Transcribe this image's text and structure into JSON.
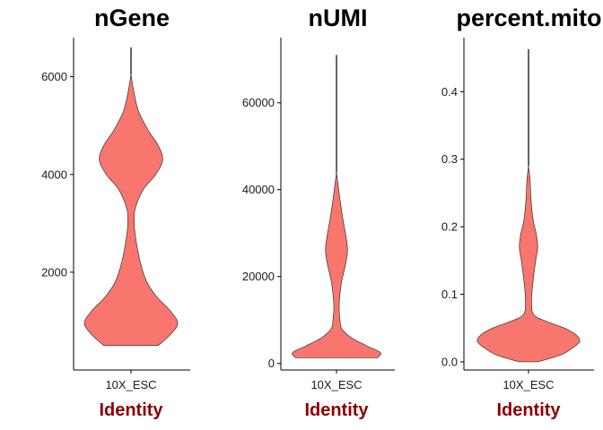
{
  "chart_data": [
    {
      "type": "violin",
      "title": "nGene",
      "xlabel": "Identity",
      "categories": [
        "10X_ESC"
      ],
      "ylim": [
        0,
        6800
      ],
      "yticks": [
        2000,
        4000,
        6000
      ],
      "y_tick_labels": [
        "2000",
        "4000",
        "6000"
      ],
      "range": [
        500,
        6600
      ],
      "spike_from": 6050,
      "density_profile": [
        {
          "y": 500,
          "w": 0.58
        },
        {
          "y": 700,
          "w": 0.82
        },
        {
          "y": 950,
          "w": 1.0
        },
        {
          "y": 1200,
          "w": 0.85
        },
        {
          "y": 1500,
          "w": 0.55
        },
        {
          "y": 1800,
          "w": 0.34
        },
        {
          "y": 2200,
          "w": 0.2
        },
        {
          "y": 2700,
          "w": 0.1
        },
        {
          "y": 3000,
          "w": 0.07
        },
        {
          "y": 3300,
          "w": 0.09
        },
        {
          "y": 3700,
          "w": 0.27
        },
        {
          "y": 4000,
          "w": 0.53
        },
        {
          "y": 4300,
          "w": 0.68
        },
        {
          "y": 4600,
          "w": 0.58
        },
        {
          "y": 4900,
          "w": 0.37
        },
        {
          "y": 5300,
          "w": 0.16
        },
        {
          "y": 5700,
          "w": 0.06
        },
        {
          "y": 6050,
          "w": 0.0
        }
      ]
    },
    {
      "type": "violin",
      "title": "nUMI",
      "xlabel": "Identity",
      "categories": [
        "10X_ESC"
      ],
      "ylim": [
        -1500,
        75000
      ],
      "yticks": [
        0,
        20000,
        40000,
        60000
      ],
      "y_tick_labels": [
        "0",
        "20000",
        "40000",
        "60000"
      ],
      "range": [
        1300,
        71000
      ],
      "spike_from": 44000,
      "density_profile": [
        {
          "y": 1300,
          "w": 0.93
        },
        {
          "y": 2500,
          "w": 1.0
        },
        {
          "y": 4000,
          "w": 0.7
        },
        {
          "y": 6000,
          "w": 0.33
        },
        {
          "y": 8000,
          "w": 0.12
        },
        {
          "y": 10000,
          "w": 0.08
        },
        {
          "y": 13000,
          "w": 0.06
        },
        {
          "y": 16000,
          "w": 0.08
        },
        {
          "y": 19000,
          "w": 0.12
        },
        {
          "y": 23000,
          "w": 0.21
        },
        {
          "y": 26000,
          "w": 0.25
        },
        {
          "y": 29000,
          "w": 0.22
        },
        {
          "y": 33000,
          "w": 0.15
        },
        {
          "y": 37000,
          "w": 0.09
        },
        {
          "y": 40000,
          "w": 0.05
        },
        {
          "y": 44000,
          "w": 0.0
        }
      ]
    },
    {
      "type": "violin",
      "title": "percent.mito",
      "xlabel": "Identity",
      "categories": [
        "10X_ESC"
      ],
      "ylim": [
        -0.012,
        0.48
      ],
      "yticks": [
        0.0,
        0.1,
        0.2,
        0.3,
        0.4
      ],
      "y_tick_labels": [
        "0.0",
        "0.1",
        "0.2",
        "0.3",
        "0.4"
      ],
      "range": [
        0.0,
        0.463
      ],
      "spike_from": 0.29,
      "density_profile": [
        {
          "y": 0.0,
          "w": 0.18
        },
        {
          "y": 0.01,
          "w": 0.62
        },
        {
          "y": 0.02,
          "w": 0.85
        },
        {
          "y": 0.03,
          "w": 1.0
        },
        {
          "y": 0.04,
          "w": 0.93
        },
        {
          "y": 0.05,
          "w": 0.7
        },
        {
          "y": 0.06,
          "w": 0.35
        },
        {
          "y": 0.07,
          "w": 0.1
        },
        {
          "y": 0.09,
          "w": 0.06
        },
        {
          "y": 0.12,
          "w": 0.09
        },
        {
          "y": 0.15,
          "w": 0.14
        },
        {
          "y": 0.17,
          "w": 0.18
        },
        {
          "y": 0.19,
          "w": 0.15
        },
        {
          "y": 0.21,
          "w": 0.09
        },
        {
          "y": 0.24,
          "w": 0.05
        },
        {
          "y": 0.27,
          "w": 0.03
        },
        {
          "y": 0.29,
          "w": 0.0
        }
      ]
    }
  ],
  "colors": {
    "violin_fill": "#F8766D",
    "axis_title": "#8B0000"
  }
}
